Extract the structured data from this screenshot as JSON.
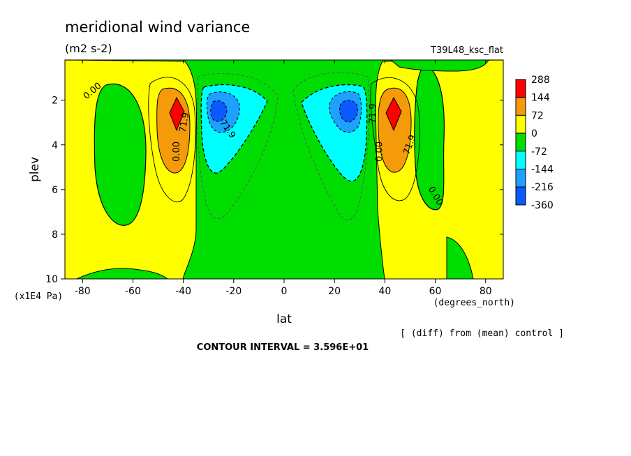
{
  "chart_data": {
    "type": "heatmap",
    "title": "meridional wind variance",
    "subtitle": "(m2 s-2)",
    "run_label": "T39L48_ksc_flat",
    "xlabel": "lat",
    "xunit": "(degrees_north)",
    "ylabel": "plev",
    "yunit": "(x1E4 Pa)",
    "xlim": [
      -87,
      87
    ],
    "ylim": [
      10,
      0.2
    ],
    "xticks": [
      -80,
      -60,
      -40,
      -20,
      0,
      20,
      40,
      60,
      80
    ],
    "yticks": [
      2,
      4,
      6,
      8,
      10
    ],
    "diff_note": "[ (diff) from (mean) control ]",
    "contour_interval_text": "CONTOUR INTERVAL = 3.596E+01",
    "contour_labels": [
      "0.00",
      "71.9",
      "0.00",
      "71.9",
      "71.9",
      "0.00",
      "71.9",
      "0.00"
    ],
    "colorbar": {
      "levels": [
        "288",
        "144",
        "72",
        "0",
        "-72",
        "-144",
        "-216",
        "-360"
      ],
      "colors": [
        "#ff0000",
        "#f59b0a",
        "#ffff00",
        "#00dd00",
        "#00ffff",
        "#1ea0ff",
        "#0a5aff"
      ]
    },
    "fill_colors": {
      "positive_1": "#ffff00",
      "positive_2": "#f59b0a",
      "positive_3": "#ff0000",
      "negative_1": "#00dd00",
      "negative_2": "#00ffff",
      "negative_3": "#1ea0ff",
      "negative_4": "#0a5aff"
    },
    "features": [
      {
        "name": "southern positive maximum",
        "lat": -44,
        "plev": 2.6,
        "value": 288
      },
      {
        "name": "southern negative minimum",
        "lat": -27,
        "plev": 2.4,
        "value": -360
      },
      {
        "name": "northern negative minimum",
        "lat": 27,
        "plev": 2.4,
        "value": -360
      },
      {
        "name": "northern positive maximum",
        "lat": 44,
        "plev": 2.6,
        "value": 288
      }
    ]
  }
}
